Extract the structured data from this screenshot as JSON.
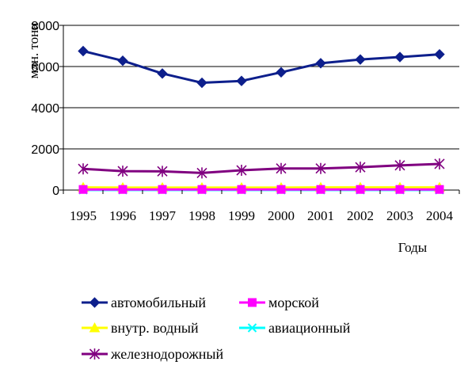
{
  "chart_data": {
    "type": "line",
    "xlabel": "Годы",
    "ylabel": "млн. тонн",
    "ylim": [
      0,
      8000
    ],
    "yticks": [
      "0",
      "2000",
      "4000",
      "6000",
      "8000"
    ],
    "grid": "horizontal",
    "legend_position": "bottom",
    "x": [
      "1995",
      "1996",
      "1997",
      "1998",
      "1999",
      "2000",
      "2001",
      "2002",
      "2003",
      "2004"
    ],
    "series": [
      {
        "name": "автомобильный",
        "values": [
          6750,
          6280,
          5660,
          5210,
          5300,
          5720,
          6160,
          6340,
          6460,
          6590
        ],
        "color": "#0d1f8c",
        "marker": "diamond"
      },
      {
        "name": "морской",
        "values": [
          30,
          30,
          30,
          30,
          30,
          30,
          30,
          30,
          30,
          30
        ],
        "color": "#ff00ff",
        "marker": "square"
      },
      {
        "name": "внутр. водный",
        "values": [
          130,
          120,
          120,
          120,
          120,
          120,
          130,
          130,
          130,
          130
        ],
        "color": "#ffff00",
        "marker": "triangle"
      },
      {
        "name": "авиационный",
        "values": [
          5,
          5,
          5,
          5,
          5,
          5,
          5,
          5,
          5,
          5
        ],
        "color": "#00ffff",
        "marker": "x"
      },
      {
        "name": "железнодорожный",
        "values": [
          1030,
          920,
          910,
          830,
          960,
          1050,
          1050,
          1110,
          1200,
          1270
        ],
        "color": "#800080",
        "marker": "asterisk"
      }
    ]
  }
}
